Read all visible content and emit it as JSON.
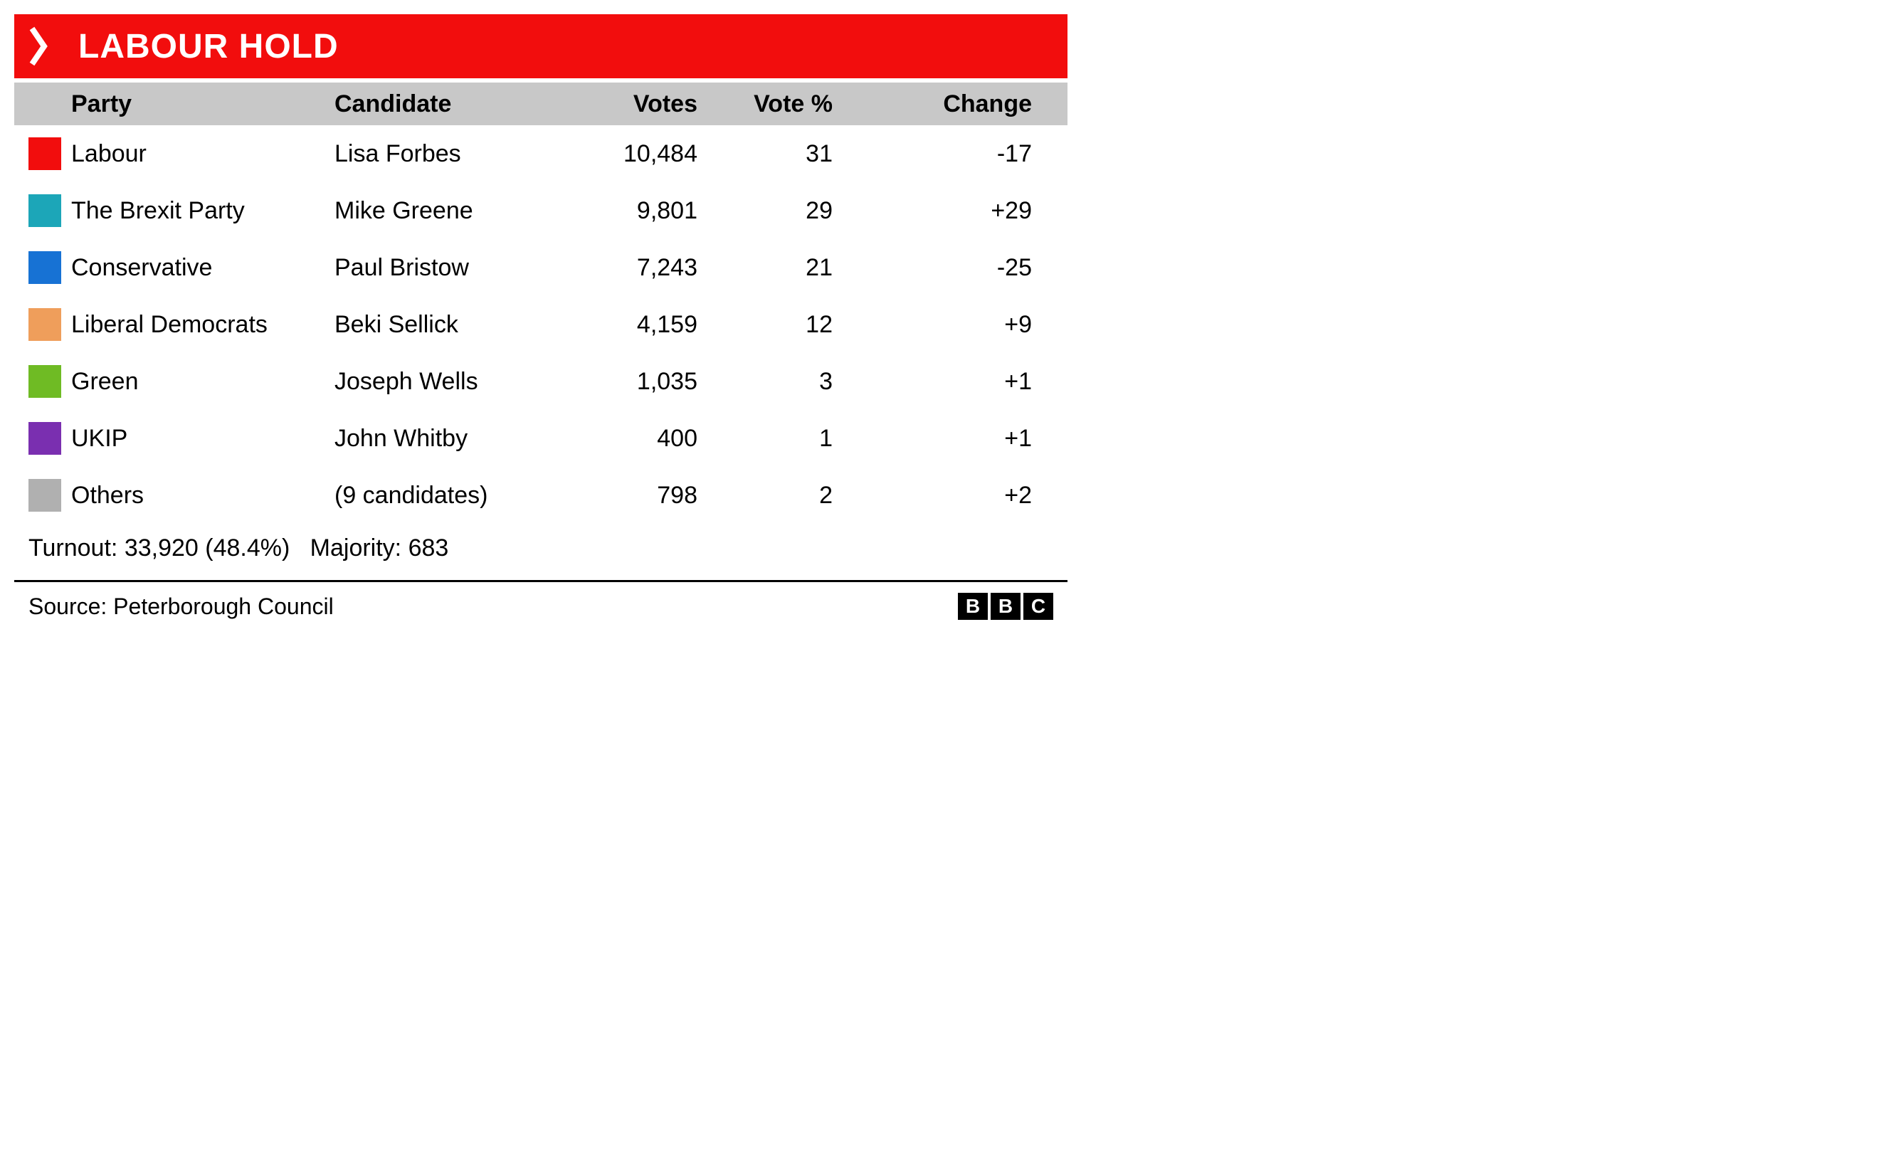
{
  "header": {
    "title": "LABOUR HOLD",
    "background_color": "#f20d0d",
    "text_color": "#ffffff"
  },
  "columns": {
    "party": "Party",
    "candidate": "Candidate",
    "votes": "Votes",
    "vote_pct": "Vote %",
    "change": "Change"
  },
  "rows": [
    {
      "color": "#f20d0d",
      "party": "Labour",
      "candidate": "Lisa Forbes",
      "votes": "10,484",
      "pct": "31",
      "change": "-17"
    },
    {
      "color": "#1ca6b8",
      "party": "The Brexit Party",
      "candidate": "Mike Greene",
      "votes": "9,801",
      "pct": "29",
      "change": "+29"
    },
    {
      "color": "#1772d4",
      "party": "Conservative",
      "candidate": "Paul Bristow",
      "votes": "7,243",
      "pct": "21",
      "change": "-25"
    },
    {
      "color": "#ef9e5b",
      "party": "Liberal Democrats",
      "candidate": "Beki Sellick",
      "votes": "4,159",
      "pct": "12",
      "change": "+9"
    },
    {
      "color": "#6fbb24",
      "party": "Green",
      "candidate": "Joseph Wells",
      "votes": "1,035",
      "pct": "3",
      "change": "+1"
    },
    {
      "color": "#7a2fb0",
      "party": "UKIP",
      "candidate": "John Whitby",
      "votes": "400",
      "pct": "1",
      "change": "+1"
    },
    {
      "color": "#b0b0b0",
      "party": "Others",
      "candidate": "(9 candidates)",
      "votes": "798",
      "pct": "2",
      "change": "+2"
    }
  ],
  "summary": {
    "turnout_label": "Turnout:",
    "turnout_value": "33,920 (48.4%)",
    "majority_label": "Majority:",
    "majority_value": "683"
  },
  "footer": {
    "source_label": "Source:",
    "source_value": "Peterborough Council",
    "logo": {
      "b1": "B",
      "b2": "B",
      "c": "C"
    }
  },
  "styling": {
    "header_row_bg": "#c8c8c8",
    "body_bg": "#ffffff",
    "text_color": "#000000",
    "font_size_header": 48,
    "font_size_body": 34,
    "swatch_size": 46
  }
}
